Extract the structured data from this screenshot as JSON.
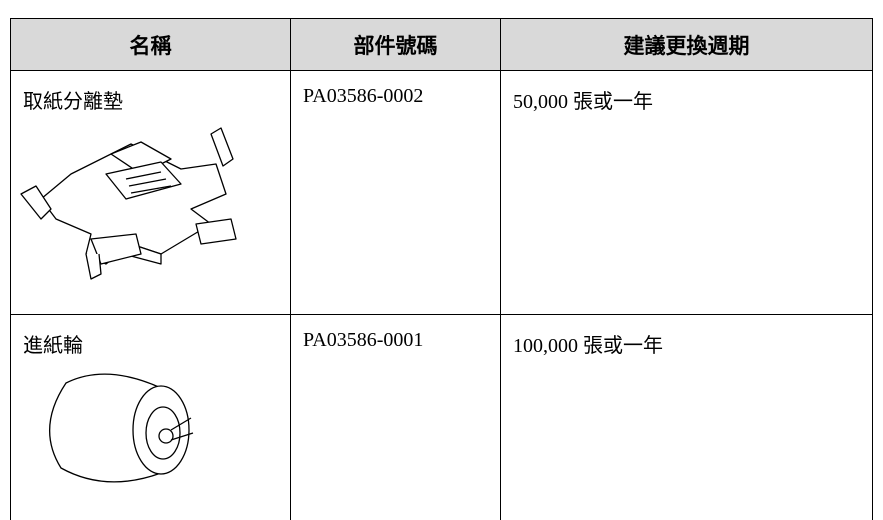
{
  "table": {
    "header": [
      "名稱",
      "部件號碼",
      "建議更換週期"
    ],
    "rows": [
      [
        "取紙分離墊",
        "PA03586-0002",
        "50,000 張或一年"
      ],
      [
        "進紙輪",
        "PA03586-0001",
        "100,000 張或一年"
      ]
    ]
  }
}
